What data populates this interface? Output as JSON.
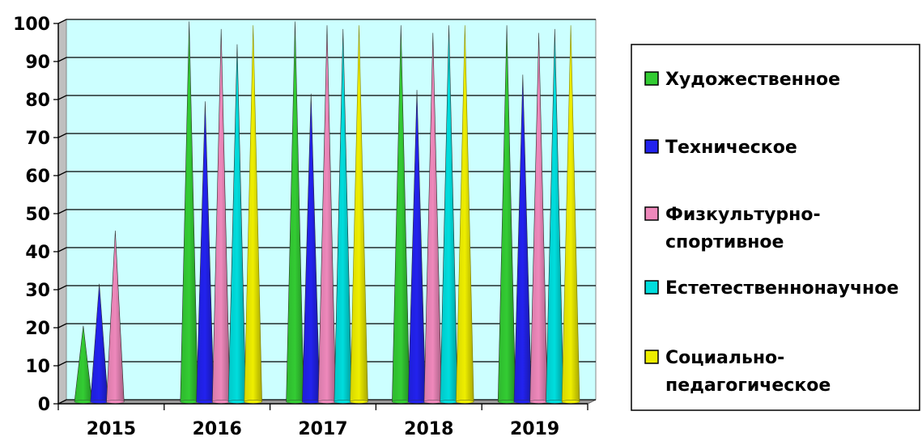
{
  "chart_data": {
    "type": "bar",
    "bar_shape": "cone",
    "categories": [
      "2015",
      "2016",
      "2017",
      "2018",
      "2019"
    ],
    "ylim": [
      0,
      100
    ],
    "yticks": [
      0,
      10,
      20,
      30,
      40,
      50,
      60,
      70,
      80,
      90,
      100
    ],
    "grid": true,
    "plot_background": "#ccffff",
    "legend_position": "right",
    "series": [
      {
        "name": "Художественное",
        "color": "#33cc33",
        "values": [
          20,
          100,
          100,
          99,
          99
        ]
      },
      {
        "name": "Техническое",
        "color": "#2222ee",
        "values": [
          31,
          79,
          81,
          82,
          86
        ]
      },
      {
        "name": "Физкультурно-\nспортивное",
        "color": "#ee88bb",
        "values": [
          45,
          98,
          99,
          97,
          97
        ]
      },
      {
        "name": "Естетественнонаучное",
        "color": "#00dddd",
        "values": [
          0,
          94,
          98,
          99,
          98
        ]
      },
      {
        "name": "Социально-\nпедагогическое",
        "color": "#eeee00",
        "values": [
          0,
          99,
          99,
          99,
          99
        ]
      }
    ]
  }
}
